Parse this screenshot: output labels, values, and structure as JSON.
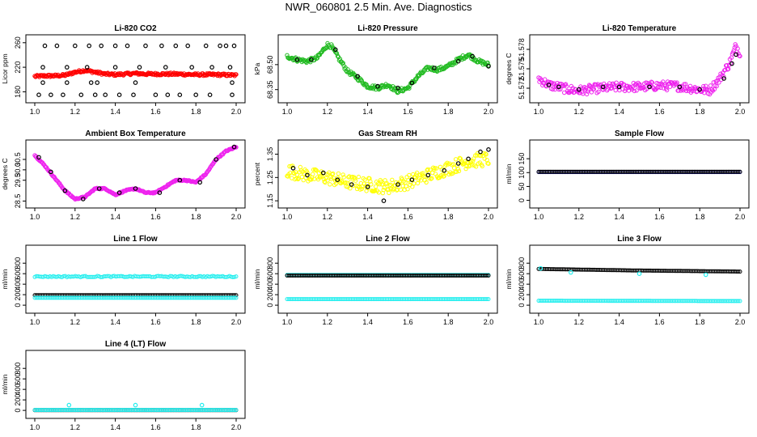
{
  "page_title": "NWR_060801  2.5 Min. Ave. Diagnostics",
  "colors": {
    "red": "#ff0000",
    "green": "#22bb22",
    "magenta": "#ee22ee",
    "yellow": "#ffff00",
    "blue": "#1a1acc",
    "cyan": "#22eeee",
    "black": "#000000"
  },
  "chart_data": [
    {
      "id": "li820-co2",
      "type": "scatter",
      "title": "Li-820 CO2",
      "ylabel": "Licor ppm",
      "xlim": [
        1.0,
        2.0
      ],
      "ylim": [
        170,
        265
      ],
      "xticks": [
        "1.0",
        "1.2",
        "1.4",
        "1.6",
        "1.8",
        "2.0"
      ],
      "yticks": [
        "180",
        "220",
        "260"
      ],
      "ytick_values": [
        180,
        220,
        260
      ],
      "series": [
        {
          "name": "co2",
          "color": "red",
          "style": "dense",
          "x": [
            1.0,
            1.05,
            1.1,
            1.15,
            1.2,
            1.25,
            1.3,
            1.35,
            1.4,
            1.45,
            1.5,
            1.55,
            1.6,
            1.7,
            1.8,
            1.9,
            2.0
          ],
          "y": [
            205,
            206,
            206,
            207,
            212,
            215,
            212,
            209,
            208,
            209,
            210,
            209,
            209,
            209,
            208,
            208,
            207
          ],
          "spread": 2
        },
        {
          "name": "co2-outliers",
          "color": "black",
          "style": "points",
          "x": [
            1.02,
            1.05,
            1.08,
            1.11,
            1.14,
            1.2,
            1.23,
            1.27,
            1.3,
            1.33,
            1.35,
            1.4,
            1.42,
            1.46,
            1.49,
            1.55,
            1.6,
            1.63,
            1.66,
            1.7,
            1.72,
            1.76,
            1.8,
            1.85,
            1.87,
            1.92,
            1.95,
            1.98,
            1.99,
            1.04,
            1.16,
            1.26,
            1.4,
            1.52,
            1.65,
            1.78,
            1.88,
            1.97,
            1.04,
            1.16,
            1.28,
            1.31,
            1.5,
            1.98
          ],
          "y": [
            175,
            255,
            175,
            255,
            175,
            255,
            175,
            255,
            175,
            255,
            175,
            255,
            175,
            255,
            175,
            255,
            175,
            255,
            175,
            255,
            175,
            255,
            175,
            255,
            175,
            255,
            255,
            175,
            255,
            220,
            220,
            220,
            220,
            220,
            220,
            220,
            220,
            220,
            195,
            195,
            195,
            195,
            195,
            195
          ]
        }
      ]
    },
    {
      "id": "li820-pressure",
      "type": "scatter",
      "title": "Li-820 Pressure",
      "ylabel": "kPa",
      "xlim": [
        1.0,
        2.0
      ],
      "ylim": [
        68.3,
        68.65
      ],
      "xticks": [
        "1.0",
        "1.2",
        "1.4",
        "1.6",
        "1.8",
        "2.0"
      ],
      "yticks": [
        "68.35",
        "68.50"
      ],
      "ytick_values": [
        68.35,
        68.5
      ],
      "series": [
        {
          "name": "pressure",
          "color": "green",
          "style": "dense",
          "x": [
            1.0,
            1.05,
            1.1,
            1.15,
            1.2,
            1.22,
            1.25,
            1.3,
            1.35,
            1.4,
            1.45,
            1.5,
            1.55,
            1.6,
            1.65,
            1.7,
            1.75,
            1.8,
            1.85,
            1.9,
            1.95,
            2.0
          ],
          "y": [
            68.55,
            68.53,
            68.52,
            68.54,
            68.62,
            68.61,
            68.55,
            68.46,
            68.42,
            68.37,
            68.36,
            68.38,
            68.34,
            68.36,
            68.43,
            68.48,
            68.47,
            68.49,
            68.53,
            68.56,
            68.52,
            68.5
          ],
          "spread": 0.012
        },
        {
          "name": "pressure-sample",
          "color": "black",
          "style": "points",
          "x": [
            1.05,
            1.12,
            1.24,
            1.35,
            1.45,
            1.55,
            1.62,
            1.73,
            1.85,
            1.92,
            2.0
          ],
          "y": [
            68.53,
            68.53,
            68.59,
            68.43,
            68.37,
            68.36,
            68.39,
            68.48,
            68.52,
            68.55,
            68.49
          ]
        }
      ]
    },
    {
      "id": "li820-temperature",
      "type": "scatter",
      "title": "Li-820 Temperature",
      "ylabel": "degrees C",
      "xlim": [
        1.0,
        2.0
      ],
      "ylim": [
        51.5705,
        51.5795
      ],
      "xticks": [
        "1.0",
        "1.2",
        "1.4",
        "1.6",
        "1.8",
        "2.0"
      ],
      "yticks": [
        "51.572",
        "51.575",
        "51.578"
      ],
      "ytick_values": [
        51.572,
        51.575,
        51.578
      ],
      "series": [
        {
          "name": "temperature",
          "color": "magenta",
          "style": "dense",
          "x": [
            1.0,
            1.05,
            1.1,
            1.15,
            1.2,
            1.3,
            1.4,
            1.5,
            1.6,
            1.7,
            1.8,
            1.85,
            1.9,
            1.95,
            1.98,
            2.0
          ],
          "y": [
            51.5735,
            51.5725,
            51.5722,
            51.5718,
            51.5716,
            51.572,
            51.5722,
            51.5722,
            51.5724,
            51.5723,
            51.5718,
            51.5717,
            51.5735,
            51.576,
            51.5785,
            51.5775
          ],
          "spread": 0.0007
        },
        {
          "name": "temperature-sample",
          "color": "black",
          "style": "points",
          "x": [
            1.05,
            1.1,
            1.2,
            1.32,
            1.4,
            1.55,
            1.7,
            1.8,
            1.92,
            1.96,
            1.98
          ],
          "y": [
            51.5725,
            51.5722,
            51.5718,
            51.5722,
            51.5722,
            51.5722,
            51.5722,
            51.5718,
            51.5735,
            51.5758,
            51.5772
          ]
        }
      ]
    },
    {
      "id": "ambient-box-temperature",
      "type": "scatter",
      "title": "Ambient Box Temperature",
      "ylabel": "degrees C",
      "xlim": [
        1.0,
        2.0
      ],
      "ylim": [
        28.4,
        31.2
      ],
      "xticks": [
        "1.0",
        "1.2",
        "1.4",
        "1.6",
        "1.8",
        "2.0"
      ],
      "yticks": [
        "28.5",
        "29.5",
        "30.0",
        "30.5"
      ],
      "ytick_values": [
        28.5,
        29.5,
        30.0,
        30.5
      ],
      "series": [
        {
          "name": "box-temp",
          "color": "magenta",
          "style": "dense",
          "x": [
            1.0,
            1.05,
            1.1,
            1.15,
            1.2,
            1.25,
            1.3,
            1.35,
            1.4,
            1.45,
            1.5,
            1.55,
            1.6,
            1.65,
            1.7,
            1.75,
            1.8,
            1.85,
            1.9,
            1.95,
            2.0
          ],
          "y": [
            30.7,
            30.2,
            29.6,
            29.0,
            28.6,
            28.7,
            29.1,
            29.1,
            28.8,
            29.0,
            29.1,
            28.9,
            28.9,
            29.2,
            29.5,
            29.5,
            29.4,
            29.8,
            30.5,
            30.9,
            31.1
          ],
          "spread": 0.03
        },
        {
          "name": "box-temp-sample",
          "color": "black",
          "style": "points",
          "x": [
            1.02,
            1.08,
            1.15,
            1.24,
            1.32,
            1.42,
            1.5,
            1.62,
            1.72,
            1.82,
            1.9,
            1.99
          ],
          "y": [
            30.6,
            29.9,
            29.0,
            28.6,
            29.1,
            28.9,
            29.1,
            28.9,
            29.5,
            29.4,
            30.5,
            31.1
          ]
        }
      ]
    },
    {
      "id": "gas-stream-rh",
      "type": "scatter",
      "title": "Gas Stream RH",
      "ylabel": "percent",
      "xlim": [
        1.0,
        2.0
      ],
      "ylim": [
        1.14,
        1.39
      ],
      "xticks": [
        "1.0",
        "1.2",
        "1.4",
        "1.6",
        "1.8",
        "2.0"
      ],
      "yticks": [
        "1.15",
        "1.25",
        "1.35"
      ],
      "ytick_values": [
        1.15,
        1.25,
        1.35
      ],
      "series": [
        {
          "name": "rh",
          "color": "yellow",
          "style": "dense",
          "x": [
            1.0,
            1.1,
            1.2,
            1.3,
            1.4,
            1.5,
            1.6,
            1.7,
            1.8,
            1.9,
            2.0
          ],
          "y": [
            1.28,
            1.26,
            1.25,
            1.23,
            1.22,
            1.21,
            1.23,
            1.26,
            1.29,
            1.32,
            1.33
          ],
          "spread": 0.03
        },
        {
          "name": "rh-sample",
          "color": "black",
          "style": "points",
          "x": [
            1.03,
            1.1,
            1.18,
            1.25,
            1.32,
            1.4,
            1.48,
            1.55,
            1.62,
            1.7,
            1.78,
            1.85,
            1.9,
            1.96,
            2.0
          ],
          "y": [
            1.29,
            1.26,
            1.27,
            1.24,
            1.22,
            1.21,
            1.15,
            1.22,
            1.24,
            1.26,
            1.28,
            1.31,
            1.33,
            1.36,
            1.37
          ]
        }
      ]
    },
    {
      "id": "sample-flow",
      "type": "scatter",
      "title": "Sample Flow",
      "ylabel": "ml/min",
      "xlim": [
        1.0,
        2.0
      ],
      "ylim": [
        -10,
        200
      ],
      "xticks": [
        "1.0",
        "1.2",
        "1.4",
        "1.6",
        "1.8",
        "2.0"
      ],
      "yticks": [
        "0",
        "50",
        "100",
        "150"
      ],
      "ytick_values": [
        0,
        50,
        100,
        150
      ],
      "series": [
        {
          "name": "sample-flow",
          "color": "blue",
          "style": "band",
          "x": [
            1.0,
            2.0
          ],
          "y": [
            102,
            102
          ]
        },
        {
          "name": "sample-flow-ref",
          "color": "black",
          "style": "band",
          "x": [
            1.0,
            2.0
          ],
          "y": [
            103,
            103
          ]
        }
      ]
    },
    {
      "id": "line-1-flow",
      "type": "scatter",
      "title": "Line 1 Flow",
      "ylabel": "ml/min",
      "xlim": [
        1.0,
        2.0
      ],
      "ylim": [
        -60,
        1050
      ],
      "xticks": [
        "1.0",
        "1.2",
        "1.4",
        "1.6",
        "1.8",
        "2.0"
      ],
      "yticks": [
        "0",
        "200",
        "400",
        "600",
        "800"
      ],
      "ytick_values": [
        0,
        200,
        400,
        600,
        800
      ],
      "series": [
        {
          "name": "line1-cyan",
          "color": "cyan",
          "style": "band",
          "x": [
            1.0,
            2.0
          ],
          "y": [
            545,
            545
          ],
          "spread": 12
        },
        {
          "name": "line1-black",
          "color": "black",
          "style": "band",
          "x": [
            1.0,
            2.0
          ],
          "y": [
            190,
            190
          ]
        },
        {
          "name": "line1-low",
          "color": "cyan",
          "style": "band",
          "x": [
            1.0,
            2.0
          ],
          "y": [
            140,
            140
          ]
        }
      ]
    },
    {
      "id": "line-2-flow",
      "type": "scatter",
      "title": "Line 2 Flow",
      "ylabel": "ml/min",
      "xlim": [
        1.0,
        2.0
      ],
      "ylim": [
        -60,
        1050
      ],
      "xticks": [
        "1.0",
        "1.2",
        "1.4",
        "1.6",
        "1.8",
        "2.0"
      ],
      "yticks": [
        "0",
        "200",
        "400",
        "600",
        "800"
      ],
      "ytick_values": [
        0,
        200,
        400,
        600,
        800
      ],
      "series": [
        {
          "name": "line2-cyan",
          "color": "cyan",
          "style": "band",
          "x": [
            1.0,
            2.0
          ],
          "y": [
            575,
            575
          ]
        },
        {
          "name": "line2-black",
          "color": "black",
          "style": "band",
          "x": [
            1.0,
            2.0
          ],
          "y": [
            565,
            565
          ]
        },
        {
          "name": "line2-low",
          "color": "cyan",
          "style": "band",
          "x": [
            1.0,
            2.0
          ],
          "y": [
            115,
            115
          ]
        }
      ]
    },
    {
      "id": "line-3-flow",
      "type": "scatter",
      "title": "Line 3 Flow",
      "ylabel": "ml/min",
      "xlim": [
        1.0,
        2.0
      ],
      "ylim": [
        -60,
        1050
      ],
      "xticks": [
        "1.0",
        "1.2",
        "1.4",
        "1.6",
        "1.8",
        "2.0"
      ],
      "yticks": [
        "0",
        "200",
        "400",
        "600",
        "800"
      ],
      "ytick_values": [
        0,
        200,
        400,
        600,
        800
      ],
      "series": [
        {
          "name": "line3-black",
          "color": "black",
          "style": "band",
          "x": [
            1.0,
            1.5,
            2.0
          ],
          "y": [
            690,
            660,
            640
          ]
        },
        {
          "name": "line3-cyan-dots",
          "color": "cyan",
          "style": "points",
          "x": [
            1.01,
            1.16,
            1.5,
            1.83
          ],
          "y": [
            700,
            625,
            600,
            580
          ]
        },
        {
          "name": "line3-low",
          "color": "cyan",
          "style": "band",
          "x": [
            1.0,
            2.0
          ],
          "y": [
            85,
            78
          ]
        }
      ]
    },
    {
      "id": "line-4-flow",
      "type": "scatter",
      "title": "Line 4 (LT) Flow",
      "ylabel": "ml/min",
      "xlim": [
        1.0,
        2.0
      ],
      "ylim": [
        -60,
        1050
      ],
      "xticks": [
        "1.0",
        "1.2",
        "1.4",
        "1.6",
        "1.8",
        "2.0"
      ],
      "yticks": [
        "0",
        "200",
        "400",
        "600",
        "800"
      ],
      "ytick_values": [
        0,
        200,
        400,
        600,
        800
      ],
      "series": [
        {
          "name": "line4-black",
          "color": "black",
          "style": "band",
          "x": [
            1.0,
            2.0
          ],
          "y": [
            5,
            5
          ]
        },
        {
          "name": "line4-cyan",
          "color": "cyan",
          "style": "band",
          "x": [
            1.0,
            2.0
          ],
          "y": [
            8,
            8
          ]
        },
        {
          "name": "line4-spikes",
          "color": "cyan",
          "style": "points",
          "x": [
            1.17,
            1.5,
            1.83
          ],
          "y": [
            100,
            100,
            100
          ]
        }
      ]
    }
  ]
}
